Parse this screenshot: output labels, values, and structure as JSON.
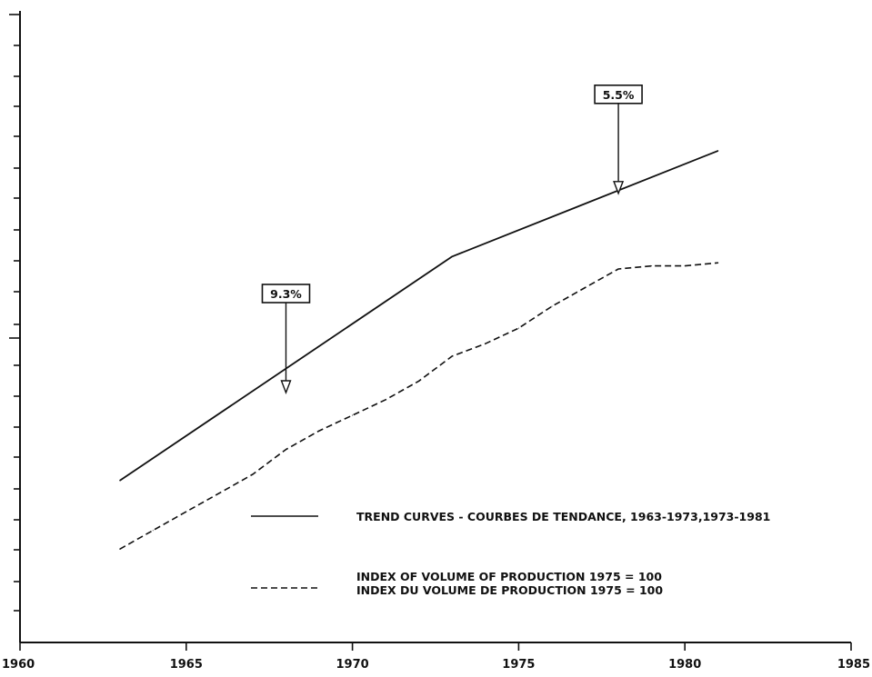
{
  "chart_data": {
    "type": "line",
    "xlim": [
      1960,
      1985
    ],
    "ylim": [
      0,
      10
    ],
    "y_scale": "log",
    "y_tick_labels": "none",
    "grid": false,
    "x_ticks": [
      "1960",
      "1965",
      "1970",
      "1975",
      "1980",
      "1985"
    ],
    "series": [
      {
        "name": "TREND CURVES - COURBES DE TENDANCE, 1963-1973,1973-1981",
        "style": "solid",
        "color": "#111111",
        "x": [
          1963,
          1973,
          1981
        ],
        "y": [
          2.6,
          6.2,
          7.9
        ]
      },
      {
        "name": "INDEX OF VOLUME OF PRODUCTION 1975 = 100",
        "name_2": "INDEX DU VOLUME DE PRODUCTION 1975 = 100",
        "style": "dashed",
        "color": "#111111",
        "x": [
          1963,
          1964,
          1965,
          1966,
          1967,
          1968,
          1969,
          1970,
          1971,
          1972,
          1973,
          1974,
          1975,
          1976,
          1977,
          1978,
          1979,
          1980,
          1981
        ],
        "y": [
          1.5,
          1.8,
          2.1,
          2.4,
          2.7,
          3.1,
          3.4,
          3.65,
          3.9,
          4.2,
          4.6,
          4.8,
          5.05,
          5.4,
          5.7,
          6.0,
          6.05,
          6.05,
          6.1
        ]
      }
    ],
    "annotations": [
      {
        "text": "9.3%",
        "x": 1968,
        "y": 4.0
      },
      {
        "text": "5.5%",
        "x": 1978,
        "y": 7.2
      }
    ],
    "legend": {
      "placement": "bottom-right",
      "entries": [
        {
          "style": "solid",
          "lines": [
            "TREND CURVES - COURBES DE TENDANCE, 1963-1973,1973-1981"
          ]
        },
        {
          "style": "dashed",
          "lines": [
            "INDEX OF VOLUME OF PRODUCTION 1975 = 100",
            "INDEX DU VOLUME DE PRODUCTION 1975 = 100"
          ]
        }
      ]
    }
  }
}
